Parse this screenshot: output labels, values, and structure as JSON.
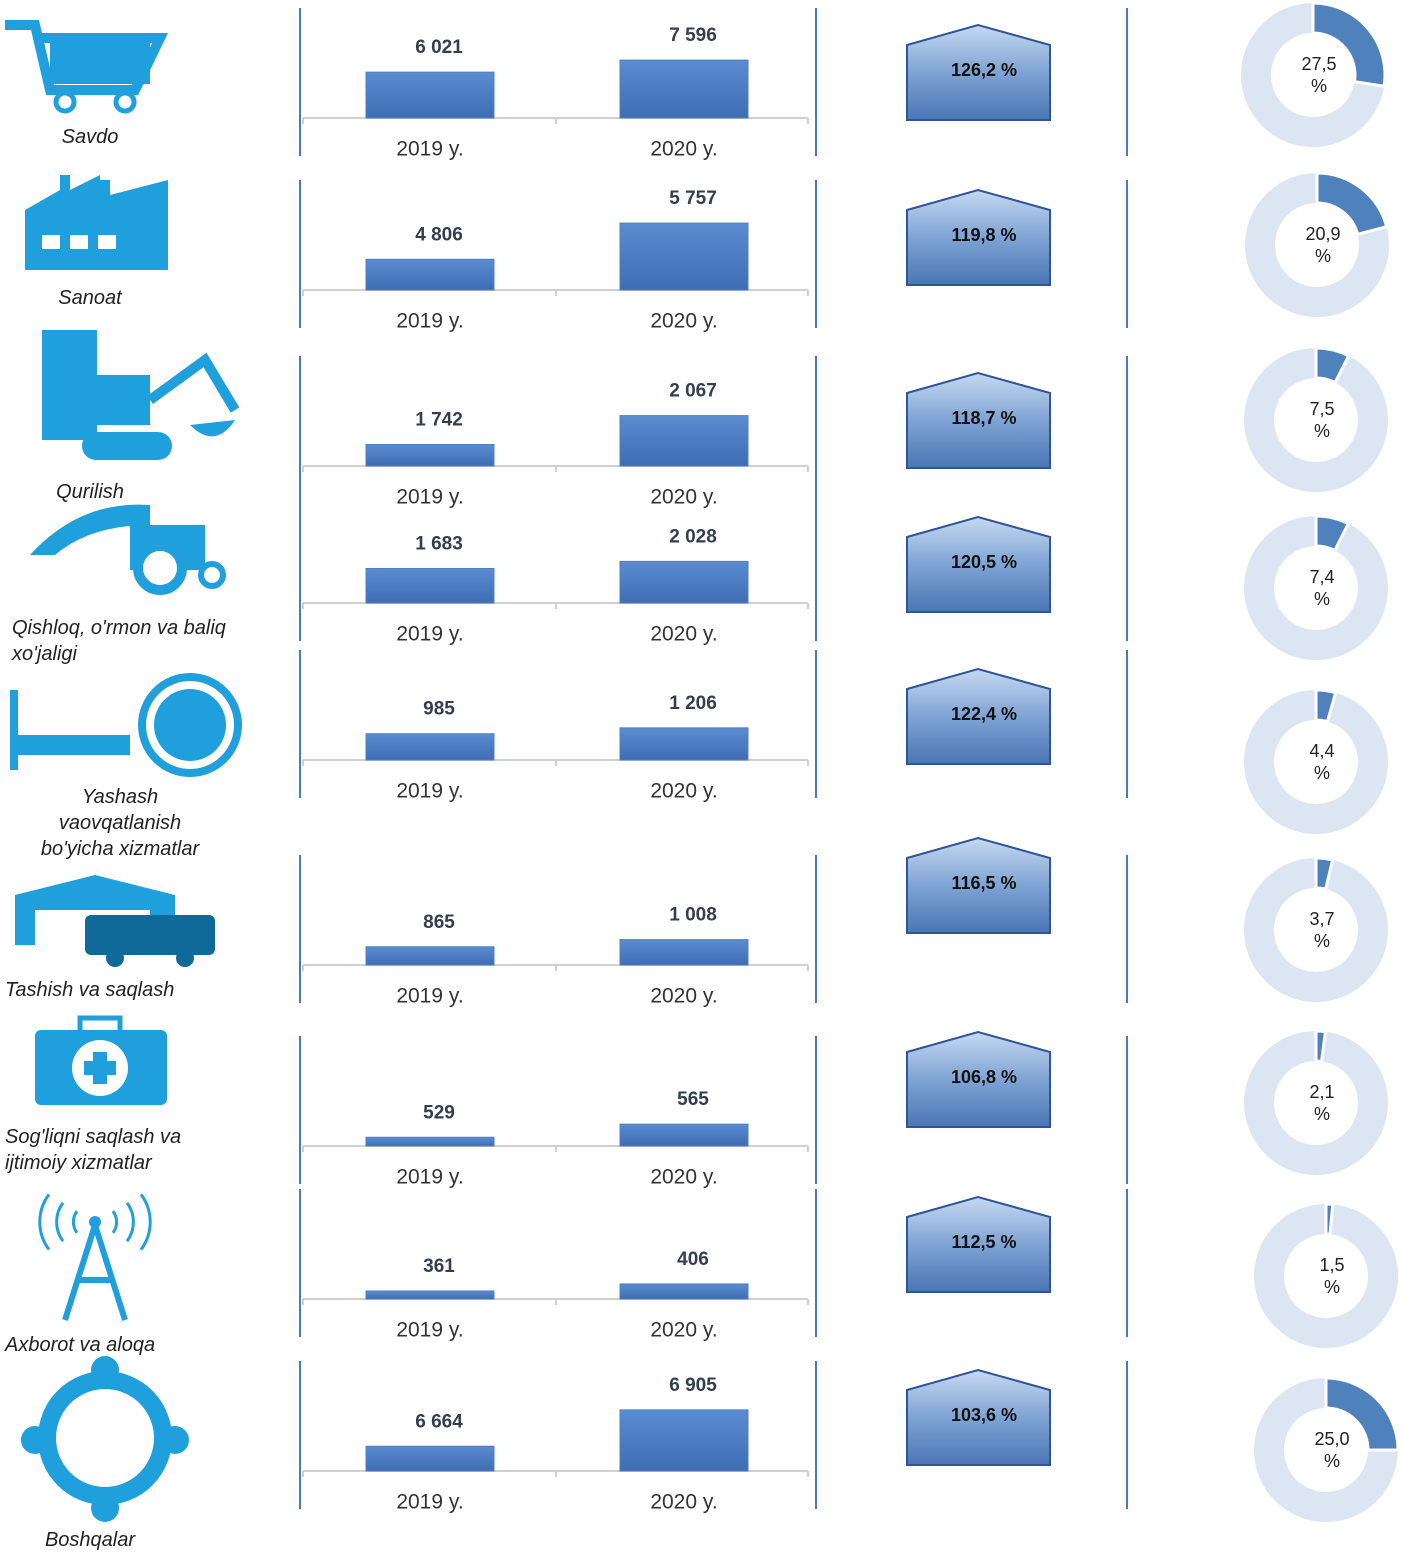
{
  "chart_data": [
    {
      "type": "bar",
      "title": "Savdo",
      "categories": [
        "2019 y.",
        "2020 y."
      ],
      "values": [
        6021,
        7596
      ],
      "value_labels": [
        "6 021",
        "7 596"
      ],
      "color": "#4f81bd",
      "ylim": [
        0,
        10500
      ],
      "growth": {
        "value": 126.2,
        "label": "126,2 %"
      },
      "share": {
        "value": 27.5,
        "label": "27,5 %"
      }
    },
    {
      "type": "bar",
      "title": "Sanoat",
      "categories": [
        "2019 y.",
        "2020 y."
      ],
      "values": [
        4806,
        5757
      ],
      "value_labels": [
        "4 806",
        "5 757"
      ],
      "color": "#4f81bd",
      "ylim": [
        4000,
        6100
      ],
      "growth": {
        "value": 119.8,
        "label": "119,8 %"
      },
      "share": {
        "value": 20.9,
        "label": "20,9 %"
      }
    },
    {
      "type": "bar",
      "title": "Qurilish",
      "categories": [
        "2019 y.",
        "2020 y."
      ],
      "values": [
        1742,
        2067
      ],
      "value_labels": [
        "1 742",
        "2 067"
      ],
      "color": "#4f81bd",
      "ylim": [
        1500,
        2400
      ],
      "growth": {
        "value": 118.7,
        "label": "118,7 %"
      },
      "share": {
        "value": 7.5,
        "label": "7,5 %"
      }
    },
    {
      "type": "bar",
      "title": "Qishloq, o'rmon va baliq xo'jaligi",
      "categories": [
        "2019 y.",
        "2020 y."
      ],
      "values": [
        1683,
        2028
      ],
      "value_labels": [
        "1 683",
        "2 028"
      ],
      "color": "#4f81bd",
      "ylim": [
        0,
        3900
      ],
      "growth": {
        "value": 120.5,
        "label": "120,5 %"
      },
      "share": {
        "value": 7.4,
        "label": "7,4 %"
      }
    },
    {
      "type": "bar",
      "title": "Yashash vaovqatlanish bo'yicha xizmatlar",
      "categories": [
        "2019 y.",
        "2020 y."
      ],
      "values": [
        985,
        1206
      ],
      "value_labels": [
        "985",
        "1 206"
      ],
      "color": "#4f81bd",
      "ylim": [
        0,
        3000
      ],
      "growth": {
        "value": 122.4,
        "label": "122,4 %"
      },
      "share": {
        "value": 4.4,
        "label": "4,4 %"
      }
    },
    {
      "type": "bar",
      "title": "Tashish va saqlash",
      "categories": [
        "2019 y.",
        "2020 y."
      ],
      "values": [
        865,
        1008
      ],
      "value_labels": [
        "865",
        "1 008"
      ],
      "color": "#4f81bd",
      "ylim": [
        500,
        2100
      ],
      "growth": {
        "value": 116.5,
        "label": "116,5 %"
      },
      "share": {
        "value": 3.7,
        "label": "3,7 %"
      }
    },
    {
      "type": "bar",
      "title": "Sog'liqni saqlash va ijtimoiy xizmatlar",
      "categories": [
        "2019 y.",
        "2020 y."
      ],
      "values": [
        529,
        565
      ],
      "value_labels": [
        "529",
        "565"
      ],
      "color": "#4f81bd",
      "ylim": [
        505,
        725
      ],
      "growth": {
        "value": 106.8,
        "label": "106,8 %"
      },
      "share": {
        "value": 2.1,
        "label": "2,1 %"
      }
    },
    {
      "type": "bar",
      "title": "Axborot va aloqa",
      "categories": [
        "2019 y.",
        "2020 y."
      ],
      "values": [
        361,
        406
      ],
      "value_labels": [
        "361",
        "406"
      ],
      "color": "#4f81bd",
      "ylim": [
        310,
        820
      ],
      "growth": {
        "value": 112.5,
        "label": "112,5 %"
      },
      "share": {
        "value": 1.5,
        "label": "1,5 %"
      }
    },
    {
      "type": "bar",
      "title": "Boshqalar",
      "categories": [
        "2019 y.",
        "2020 y."
      ],
      "values": [
        6664,
        6905
      ],
      "value_labels": [
        "6 664",
        "6 905"
      ],
      "color": "#4f81bd",
      "ylim": [
        6500,
        7030
      ],
      "growth": {
        "value": 103.6,
        "label": "103,6 %"
      },
      "share": {
        "value": 25.0,
        "label": "25,0 %"
      }
    }
  ]
}
